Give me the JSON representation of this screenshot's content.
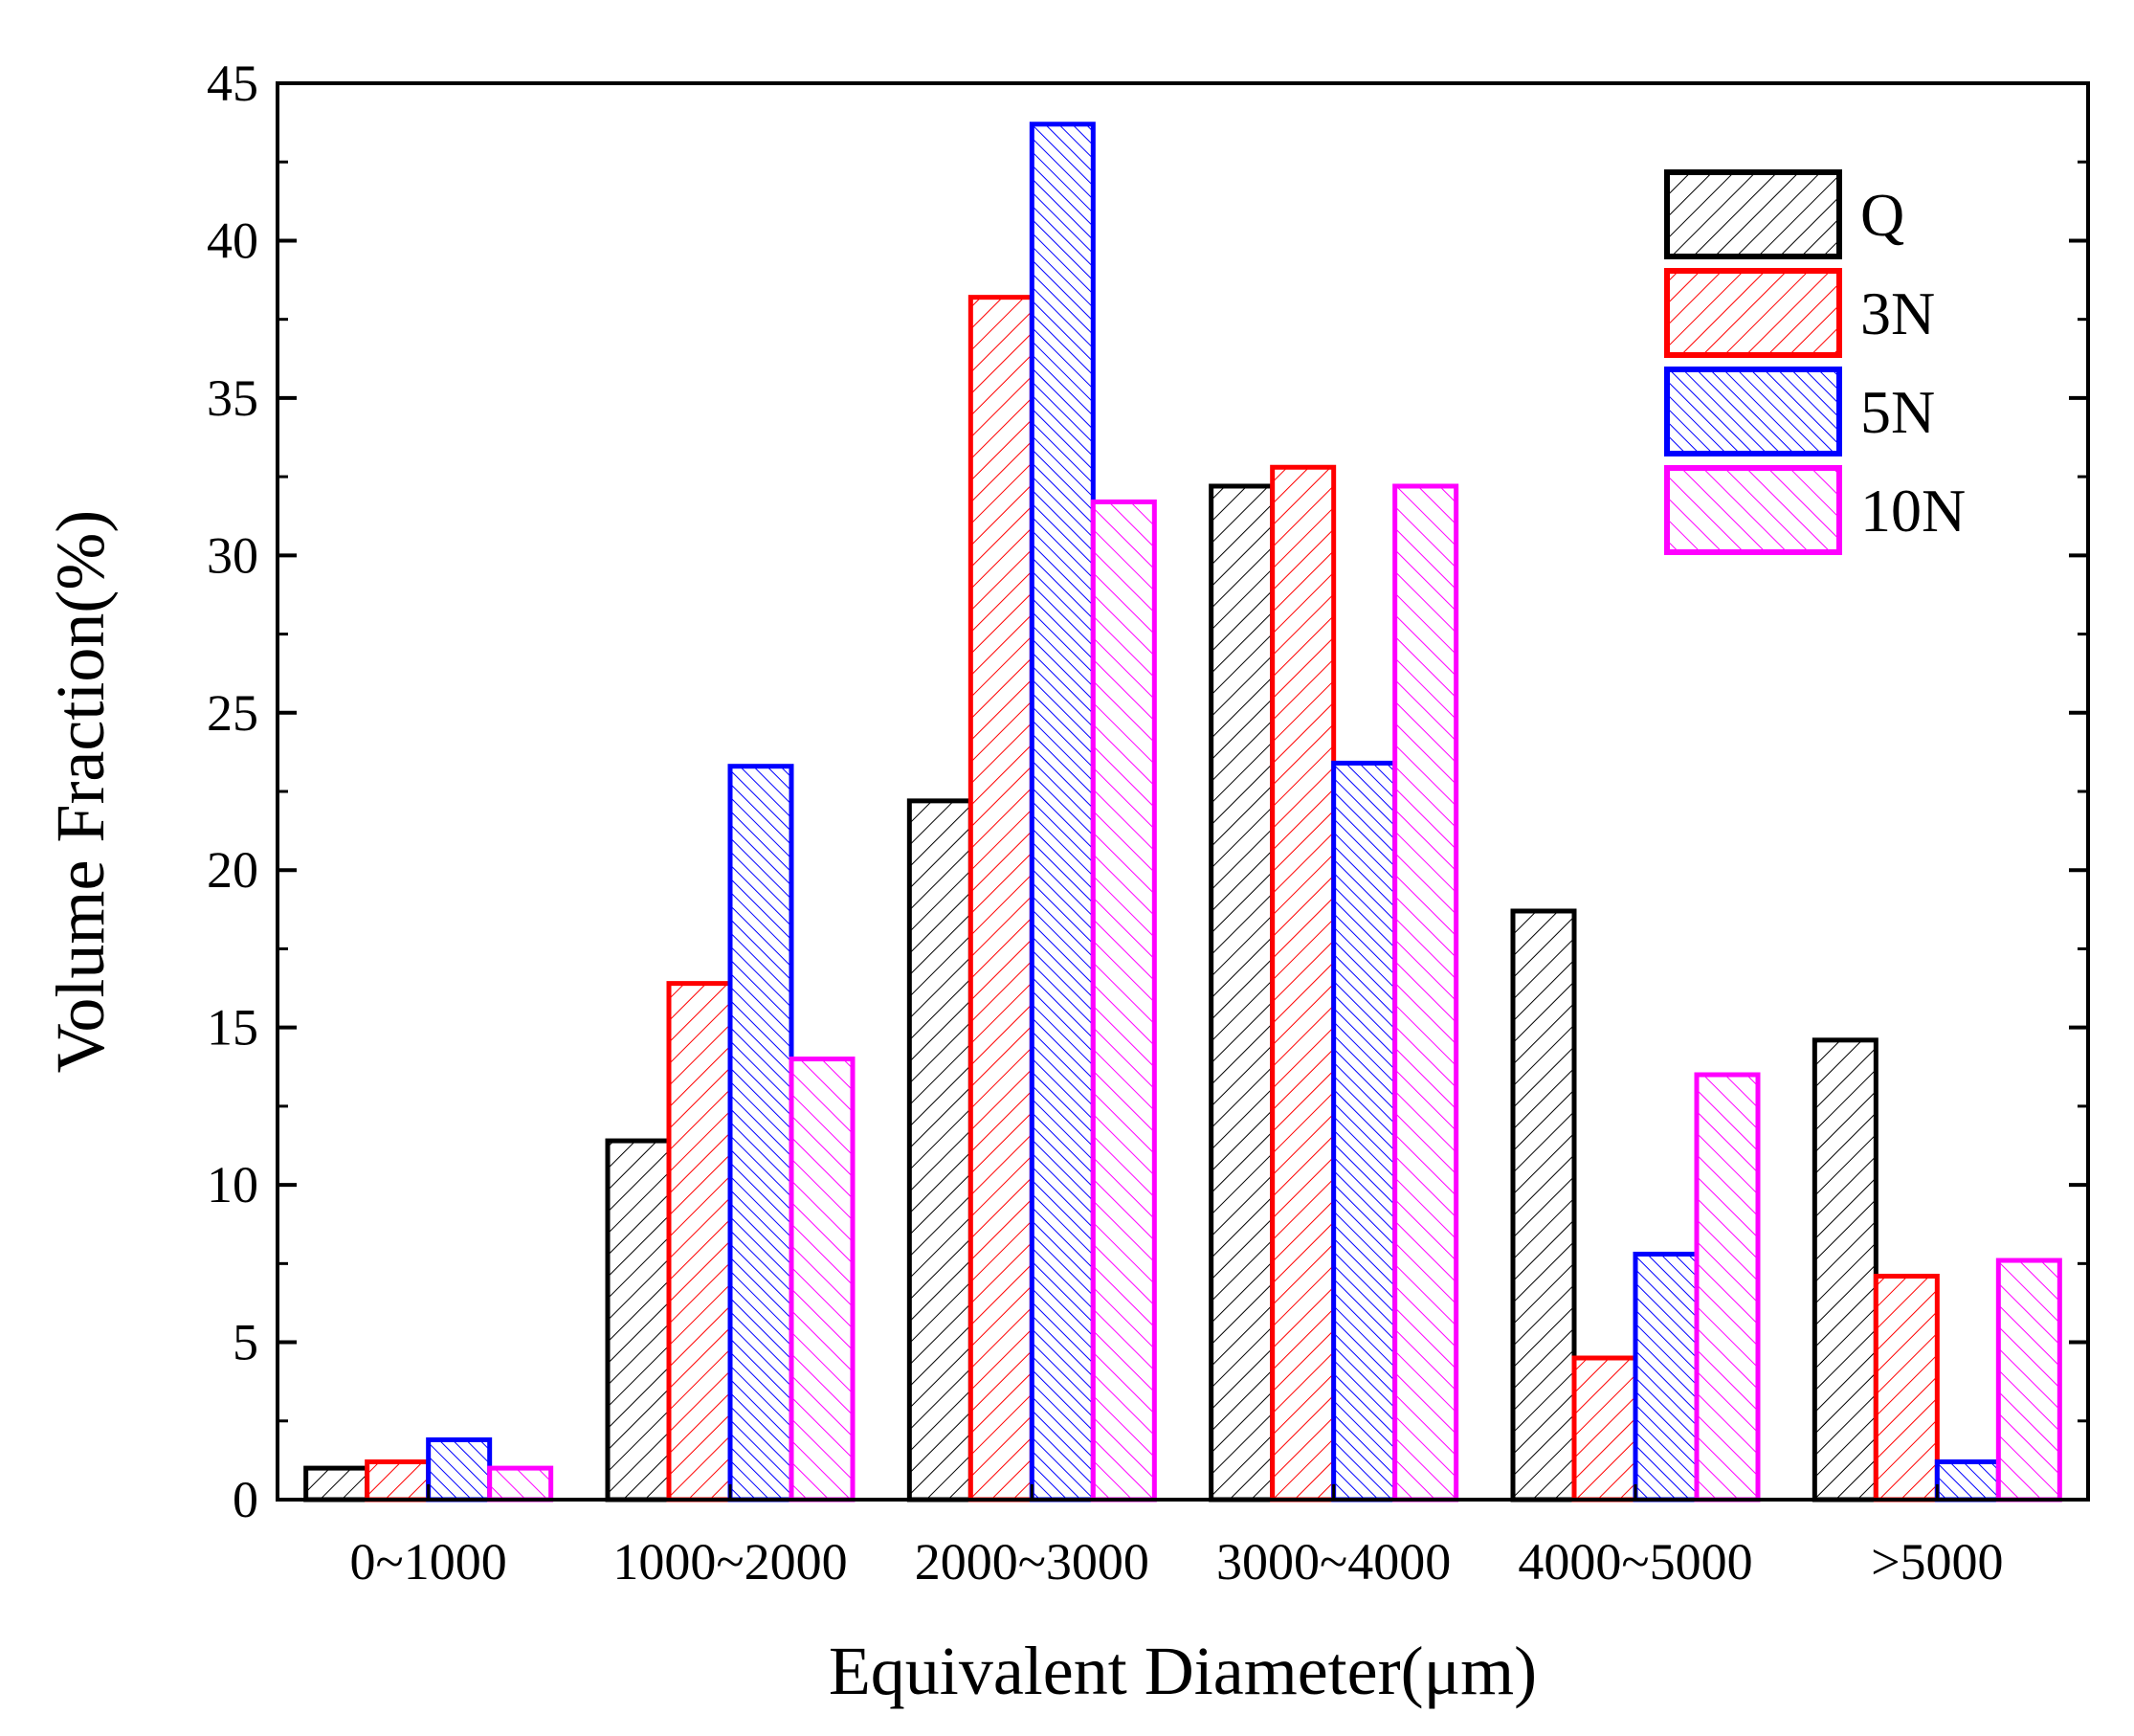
{
  "chart_data": {
    "type": "bar",
    "title": "",
    "xlabel": "Equivalent Diameter(μm)",
    "ylabel": "Volume Fraction(%)",
    "ylim": [
      0,
      45
    ],
    "yticks": [
      "0",
      "5",
      "10",
      "15",
      "20",
      "25",
      "30",
      "35",
      "40",
      "45"
    ],
    "categories": [
      "0~1000",
      "1000~2000",
      "2000~3000",
      "3000~4000",
      "4000~5000",
      ">5000"
    ],
    "legend_position": "top-right",
    "series": [
      {
        "name": "Q",
        "color": "#000000",
        "hatch": "forward-sparse",
        "values": [
          1.0,
          11.4,
          22.2,
          32.2,
          18.7,
          14.6
        ]
      },
      {
        "name": "3N",
        "color": "#ff0000",
        "hatch": "forward-sparse",
        "values": [
          1.2,
          16.4,
          38.2,
          32.8,
          4.5,
          7.1
        ]
      },
      {
        "name": "5N",
        "color": "#0000ff",
        "hatch": "backward-dense",
        "values": [
          1.9,
          23.3,
          43.7,
          23.4,
          7.8,
          1.2
        ]
      },
      {
        "name": "10N",
        "color": "#ff00ff",
        "hatch": "backward-sparse",
        "values": [
          1.0,
          14.0,
          31.7,
          32.2,
          13.5,
          7.6
        ]
      }
    ]
  }
}
